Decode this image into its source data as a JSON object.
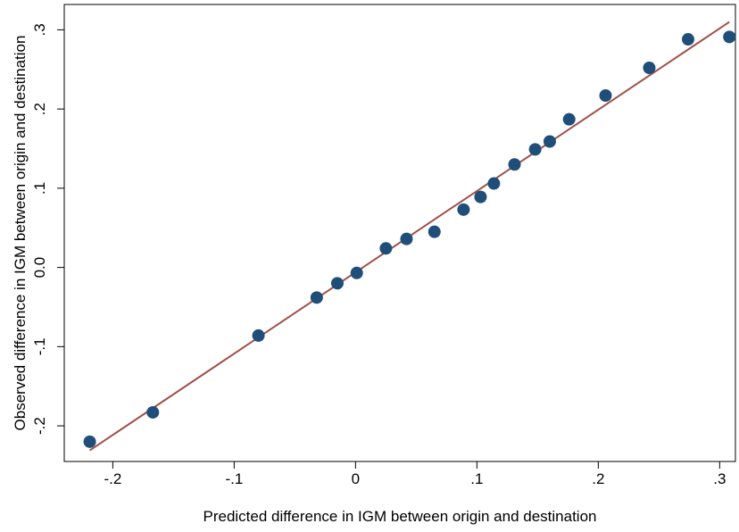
{
  "chart_data": {
    "type": "scatter",
    "title": "",
    "xlabel": "Predicted difference in IGM between origin and destination",
    "ylabel": "Observed difference in IGM between origin and destination",
    "xlim": [
      -0.24,
      0.313
    ],
    "ylim": [
      -0.245,
      0.332
    ],
    "x_ticks": [
      -0.2,
      -0.1,
      0,
      0.1,
      0.2,
      0.3
    ],
    "x_tick_labels": [
      "-.2",
      "-.1",
      "0",
      ".1",
      ".2",
      ".3"
    ],
    "y_ticks": [
      -0.2,
      -0.1,
      0,
      0.1,
      0.2,
      0.3
    ],
    "y_tick_labels": [
      "-.2",
      "-.1",
      "0.0",
      ".1",
      ".2",
      ".3"
    ],
    "grid": false,
    "legend": "none",
    "series": [
      {
        "type": "scatter",
        "color": "#1f4e79",
        "x": [
          -0.219,
          -0.167,
          -0.08,
          -0.032,
          -0.015,
          0.001,
          0.025,
          0.042,
          0.065,
          0.089,
          0.103,
          0.114,
          0.131,
          0.148,
          0.16,
          0.176,
          0.206,
          0.242,
          0.274,
          0.308
        ],
        "y": [
          -0.22,
          -0.183,
          -0.086,
          -0.038,
          -0.02,
          -0.007,
          0.024,
          0.036,
          0.045,
          0.073,
          0.089,
          0.106,
          0.13,
          0.149,
          0.159,
          0.187,
          0.217,
          0.252,
          0.288,
          0.291
        ]
      },
      {
        "type": "line",
        "color": "#a0504a",
        "x": [
          -0.219,
          0.308
        ],
        "y": [
          -0.231,
          0.31
        ]
      }
    ]
  }
}
